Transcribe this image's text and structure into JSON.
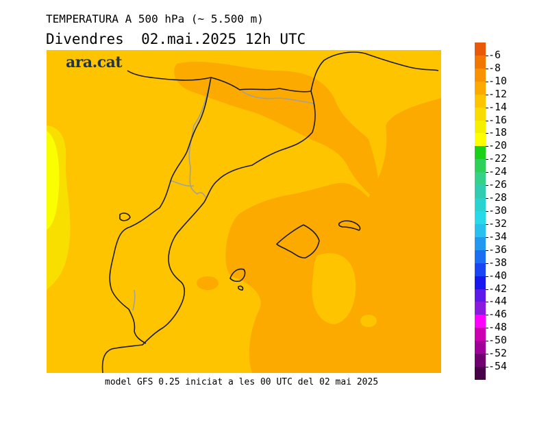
{
  "header": {
    "title": "TEMPERATURA A 500 hPa (~ 5.500 m)",
    "subtitle": "Divendres  02.mai.2025 12h UTC"
  },
  "map": {
    "brand": "ara.cat",
    "field_colors": {
      "band_-12_-14": "#fdaa00",
      "band_-14_-16": "#ffc400",
      "band_-16_-18": "#f9df00",
      "band_-18_-20": "#faff00"
    },
    "coastline_color": "#1a1a1a",
    "border_color": "#a0a0a0"
  },
  "footer": {
    "caption": "model GFS 0.25 iniciat a les 00 UTC del 02 mai 2025"
  },
  "legend": {
    "labels": [
      "-6",
      "-8",
      "-10",
      "-12",
      "-14",
      "-16",
      "-18",
      "-20",
      "-22",
      "-24",
      "-26",
      "-28",
      "-30",
      "-32",
      "-34",
      "-36",
      "-38",
      "-40",
      "-42",
      "-44",
      "-46",
      "-48",
      "-50",
      "-52",
      "-54"
    ],
    "colors": [
      "#e85a0a",
      "#f07800",
      "#f99200",
      "#fdaa00",
      "#ffc400",
      "#fadb00",
      "#f4f000",
      "#ffff00",
      "#1ad11a",
      "#2fd05a",
      "#37d089",
      "#32ccb0",
      "#2bd3d0",
      "#28d9e8",
      "#28c1ee",
      "#2299ee",
      "#1c6ef2",
      "#1a44f4",
      "#1818ee",
      "#5b1ae8",
      "#8a1ae0",
      "#ff00ff",
      "#cc00b0",
      "#a00098",
      "#700070",
      "#480048"
    ]
  }
}
